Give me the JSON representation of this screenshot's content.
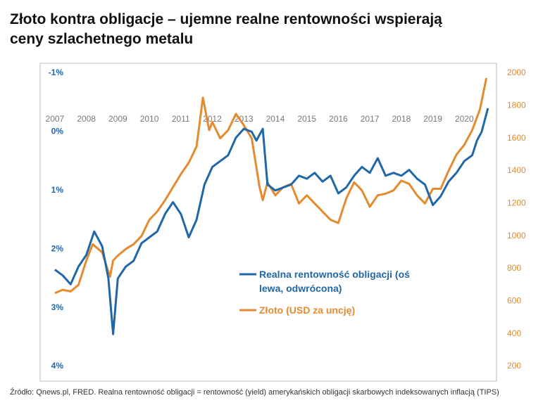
{
  "chart_data": {
    "type": "line",
    "title": "Złoto kontra obligacje – ujemne realne rentowności wspierają ceny szlachetnego metalu",
    "source": "Źródło: Qnews.pl, FRED. Realna rentowność obligacji = rentowność (yield) amerykańskich obligacji skarbowych indeksowanych inflacją (TIPS)",
    "xlim": [
      2006.6,
      2021.0
    ],
    "xticks": [
      2007,
      2008,
      2009,
      2010,
      2011,
      2012,
      2013,
      2014,
      2015,
      2016,
      2017,
      2018,
      2019,
      2020
    ],
    "ylim": [
      -1,
      4
    ],
    "y_inverted": true,
    "yticks": [
      {
        "value": -1,
        "label": "-1%"
      },
      {
        "value": 0,
        "label": "0%"
      },
      {
        "value": 1,
        "label": "1%"
      },
      {
        "value": 2,
        "label": "2%"
      },
      {
        "value": 3,
        "label": "3%"
      },
      {
        "value": 4,
        "label": "4%"
      }
    ],
    "y2lim": [
      200,
      2000
    ],
    "y2ticks": [
      200,
      400,
      600,
      800,
      1000,
      1200,
      1400,
      1600,
      1800,
      2000
    ],
    "series": [
      {
        "name": "Realna rentowność obligacji (oś lewa, odwrócona)",
        "color": "#1f67a8",
        "axis": "y",
        "x": [
          2007.0,
          2007.25,
          2007.5,
          2007.75,
          2008.0,
          2008.25,
          2008.5,
          2008.7,
          2008.85,
          2009.0,
          2009.25,
          2009.5,
          2009.75,
          2010.0,
          2010.25,
          2010.5,
          2010.75,
          2011.0,
          2011.25,
          2011.5,
          2011.75,
          2012.0,
          2012.25,
          2012.5,
          2012.75,
          2013.0,
          2013.25,
          2013.4,
          2013.6,
          2013.75,
          2014.0,
          2014.25,
          2014.5,
          2014.75,
          2015.0,
          2015.25,
          2015.5,
          2015.75,
          2016.0,
          2016.25,
          2016.5,
          2016.75,
          2017.0,
          2017.25,
          2017.5,
          2017.75,
          2018.0,
          2018.25,
          2018.5,
          2018.75,
          2019.0,
          2019.25,
          2019.5,
          2019.75,
          2020.0,
          2020.25,
          2020.4,
          2020.55,
          2020.65,
          2020.75
        ],
        "values": [
          2.35,
          2.45,
          2.6,
          2.3,
          2.1,
          1.7,
          1.95,
          2.5,
          3.45,
          2.5,
          2.3,
          2.2,
          1.9,
          1.8,
          1.7,
          1.4,
          1.2,
          1.4,
          1.8,
          1.5,
          0.9,
          0.6,
          0.5,
          0.4,
          0.1,
          -0.05,
          0.0,
          0.15,
          -0.05,
          0.9,
          1.0,
          0.95,
          0.9,
          0.75,
          0.8,
          0.7,
          0.85,
          0.75,
          1.05,
          0.95,
          0.75,
          0.6,
          0.7,
          0.45,
          0.75,
          0.7,
          0.75,
          0.65,
          0.8,
          0.9,
          1.25,
          1.1,
          0.85,
          0.7,
          0.5,
          0.4,
          0.15,
          0.0,
          -0.2,
          -0.4
        ]
      },
      {
        "name": "Złoto (USD za uncję)",
        "color": "#e58a2e",
        "axis": "y2",
        "x": [
          2007.0,
          2007.25,
          2007.5,
          2007.75,
          2008.0,
          2008.2,
          2008.5,
          2008.75,
          2008.85,
          2009.0,
          2009.25,
          2009.5,
          2009.75,
          2010.0,
          2010.25,
          2010.5,
          2010.75,
          2011.0,
          2011.25,
          2011.5,
          2011.7,
          2011.9,
          2012.0,
          2012.25,
          2012.5,
          2012.75,
          2013.0,
          2013.25,
          2013.5,
          2013.6,
          2013.75,
          2014.0,
          2014.25,
          2014.5,
          2014.75,
          2015.0,
          2015.25,
          2015.5,
          2015.75,
          2016.0,
          2016.25,
          2016.5,
          2016.75,
          2017.0,
          2017.25,
          2017.5,
          2017.75,
          2018.0,
          2018.25,
          2018.5,
          2018.75,
          2019.0,
          2019.25,
          2019.5,
          2019.75,
          2020.0,
          2020.25,
          2020.5,
          2020.7
        ],
        "values": [
          650,
          670,
          660,
          700,
          850,
          950,
          900,
          750,
          850,
          880,
          920,
          950,
          1000,
          1100,
          1150,
          1220,
          1300,
          1380,
          1450,
          1550,
          1850,
          1650,
          1700,
          1600,
          1650,
          1750,
          1680,
          1600,
          1300,
          1220,
          1330,
          1250,
          1300,
          1320,
          1200,
          1250,
          1200,
          1150,
          1100,
          1080,
          1230,
          1330,
          1280,
          1180,
          1250,
          1260,
          1280,
          1340,
          1320,
          1250,
          1200,
          1290,
          1290,
          1400,
          1500,
          1560,
          1650,
          1780,
          1970
        ]
      }
    ]
  }
}
